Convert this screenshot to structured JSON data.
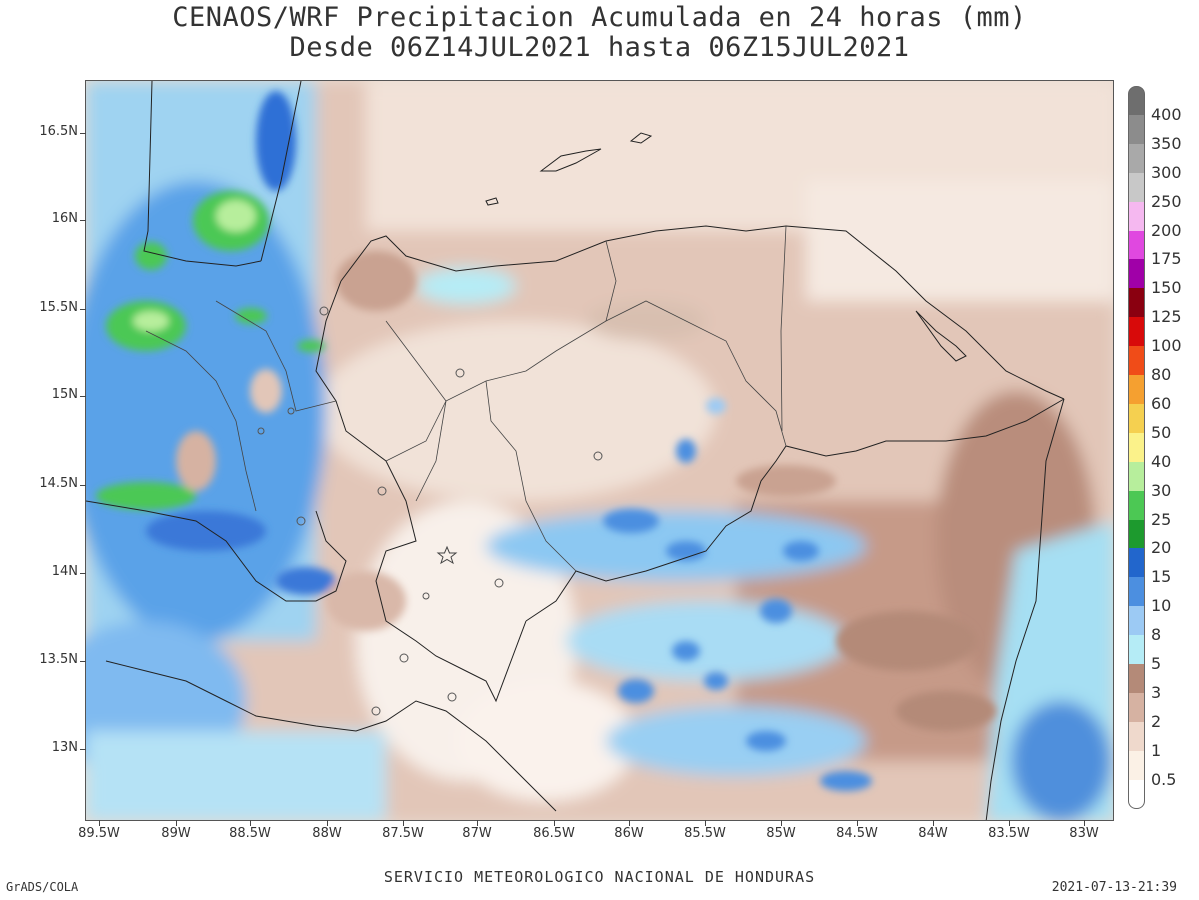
{
  "title_line1": "CENAOS/WRF Precipitacion Acumulada en 24 horas (mm)",
  "title_line2": "Desde 06Z14JUL2021 hasta 06Z15JUL2021",
  "lat_labels": [
    "16.5N",
    "16N",
    "15.5N",
    "15N",
    "14.5N",
    "14N",
    "13.5N",
    "13N"
  ],
  "lon_labels": [
    "89.5W",
    "89W",
    "88.5W",
    "88W",
    "87.5W",
    "87W",
    "86.5W",
    "86W",
    "85.5W",
    "85W",
    "84.5W",
    "84W",
    "83.5W",
    "83W"
  ],
  "colorbar": {
    "labels": [
      "400",
      "350",
      "300",
      "250",
      "200",
      "175",
      "150",
      "125",
      "100",
      "80",
      "60",
      "50",
      "40",
      "30",
      "25",
      "20",
      "15",
      "10",
      "8",
      "5",
      "3",
      "2",
      "1",
      "0.5"
    ],
    "colors": [
      "#6e6e6e",
      "#8c8c8c",
      "#a9a9a9",
      "#c8c8c8",
      "#f5b8f0",
      "#e048e0",
      "#a000a8",
      "#8a0010",
      "#d80a0a",
      "#f04c18",
      "#f5a030",
      "#f5d050",
      "#fbf28a",
      "#b7ee9c",
      "#4cc854",
      "#1d9a2e",
      "#2266cc",
      "#4c8fe0",
      "#9ccaf4",
      "#b5ecf6",
      "#b48a78",
      "#d6b2a2",
      "#efd9cc",
      "#fbf1e6",
      "#ffffff"
    ]
  },
  "footer_service": "SERVICIO METEOROLOGICO NACIONAL DE HONDURAS",
  "footer_left": "GrADS/COLA",
  "footer_right": "2021-07-13-21:39"
}
